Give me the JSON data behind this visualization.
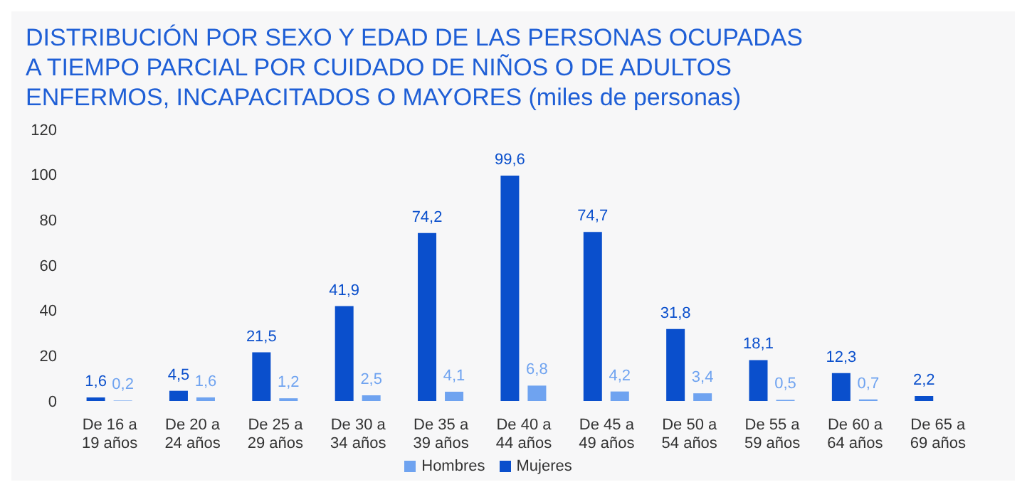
{
  "chart_data": {
    "type": "bar",
    "title": "DISTRIBUCIÓN POR SEXO Y EDAD DE LAS PERSONAS OCUPADAS A TIEMPO PARCIAL POR CUIDADO DE NIÑOS O DE ADULTOS ENFERMOS, INCAPACITADOS O MAYORES (miles de personas)",
    "categories": [
      "De 16 a 19 años",
      "De 20 a 24 años",
      "De 25 a 29 años",
      "De 30 a 34 años",
      "De 35 a 39 años",
      "De 40 a 44 años",
      "De 45 a 49 años",
      "De 50 a 54 años",
      "De 55 a 59 años",
      "De 60 a 64 años",
      "De 65 a 69 años"
    ],
    "series": [
      {
        "name": "Mujeres",
        "color": "#0a4fcc",
        "values": [
          1.6,
          4.5,
          21.5,
          41.9,
          74.2,
          99.6,
          74.7,
          31.8,
          18.1,
          12.3,
          2.2
        ],
        "value_labels": [
          "1,6",
          "4,5",
          "21,5",
          "41,9",
          "74,2",
          "99,6",
          "74,7",
          "31,8",
          "18,1",
          "12,3",
          "2,2"
        ]
      },
      {
        "name": "Hombres",
        "color": "#6fa3f0",
        "values": [
          0.2,
          1.6,
          1.2,
          2.5,
          4.1,
          6.8,
          4.2,
          3.4,
          0.5,
          0.7,
          null
        ],
        "value_labels": [
          "0,2",
          "1,6",
          "1,2",
          "2,5",
          "4,1",
          "6,8",
          "4,2",
          "3,4",
          "0,5",
          "0,7",
          null
        ]
      }
    ],
    "ylim": [
      0,
      120
    ],
    "yticks": [
      0,
      20,
      40,
      60,
      80,
      100,
      120
    ],
    "grid": false,
    "legend": "bottom"
  }
}
